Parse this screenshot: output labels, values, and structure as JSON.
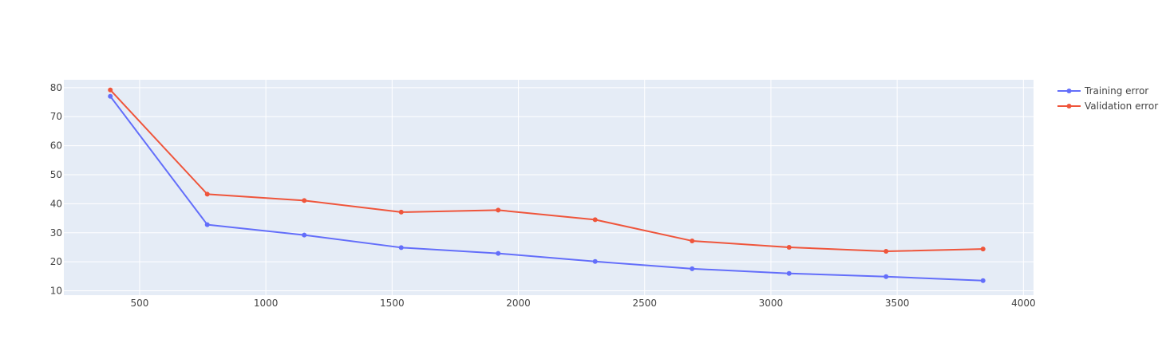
{
  "chart_data": {
    "type": "line",
    "title": "",
    "xlabel": "",
    "ylabel": "",
    "xlim": [
      200,
      4040
    ],
    "ylim": [
      8.5,
      82.7
    ],
    "x_ticks": [
      500,
      1000,
      1500,
      2000,
      2500,
      3000,
      3500,
      4000
    ],
    "y_ticks": [
      10,
      20,
      30,
      40,
      50,
      60,
      70,
      80
    ],
    "x_tick_labels": [
      "500",
      "1000",
      "1500",
      "2000",
      "2500",
      "3000",
      "3500",
      "4000"
    ],
    "y_tick_labels": [
      "10",
      "20",
      "30",
      "40",
      "50",
      "60",
      "70",
      "80"
    ],
    "grid": true,
    "legend_position": "top-right",
    "x": [
      384,
      768,
      1152,
      1536,
      1920,
      2304,
      2688,
      3072,
      3456,
      3840
    ],
    "series": [
      {
        "name": "Training error",
        "color": "#636efa",
        "values": [
          77.0,
          32.8,
          29.2,
          24.9,
          22.9,
          20.1,
          17.6,
          16.0,
          14.9,
          13.5
        ]
      },
      {
        "name": "Validation error",
        "color": "#ef553b",
        "values": [
          79.2,
          43.3,
          41.1,
          37.1,
          37.8,
          34.5,
          27.2,
          25.0,
          23.6,
          24.4
        ]
      }
    ],
    "plot_background": "#e5ecf6",
    "grid_color": "#ffffff"
  }
}
